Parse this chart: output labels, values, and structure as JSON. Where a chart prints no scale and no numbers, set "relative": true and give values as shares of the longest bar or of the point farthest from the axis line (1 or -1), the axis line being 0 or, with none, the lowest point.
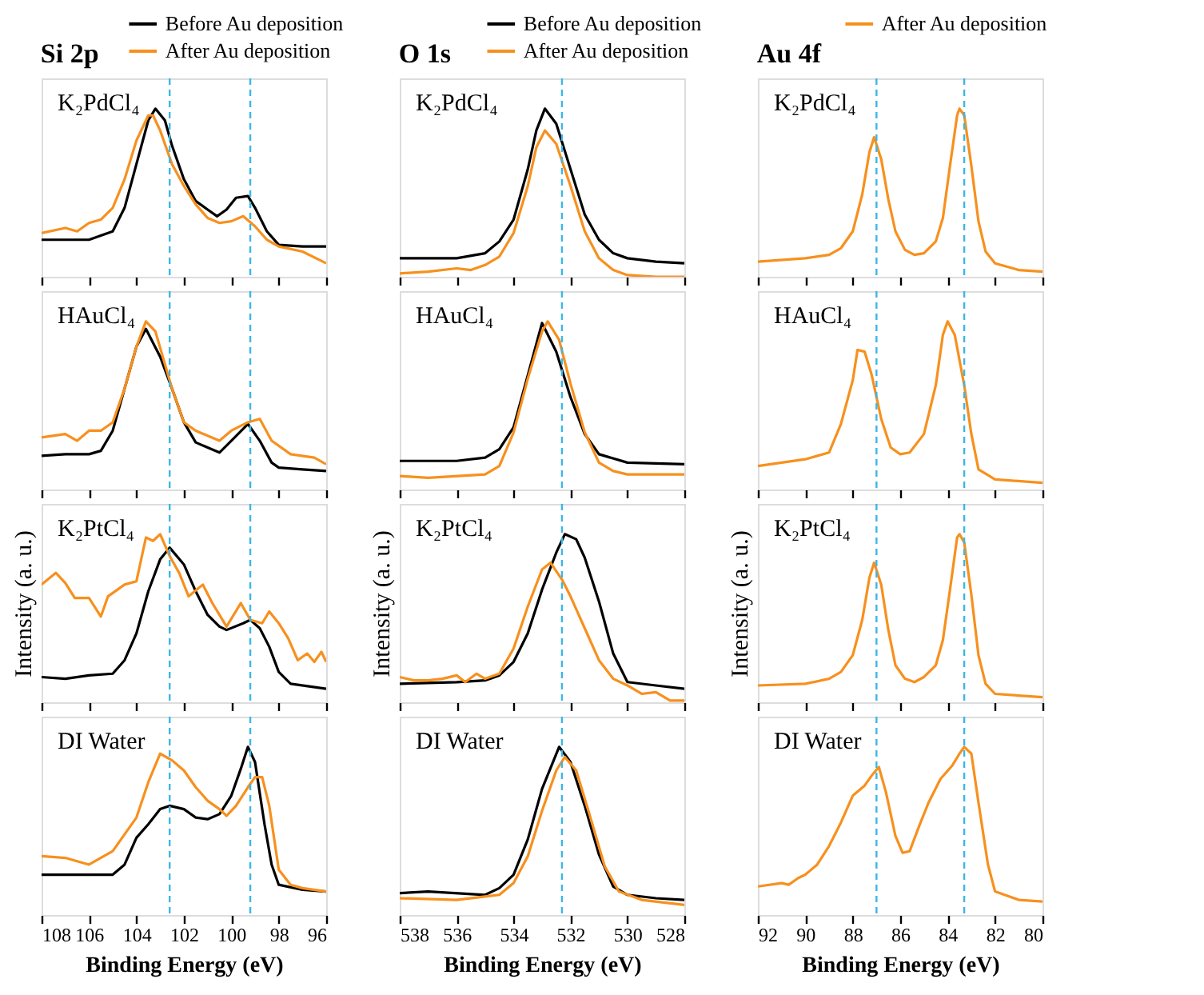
{
  "chart_data": [
    {
      "type": "line",
      "relative": true,
      "title": "Si 2p",
      "legend": "top",
      "xlim": [
        108,
        96
      ],
      "xticks": [
        108,
        106,
        104,
        102,
        100,
        98,
        96
      ],
      "tick_labels": false,
      "grid": false,
      "line_style": "solid",
      "annotations": [
        "K₂PdCl₄"
      ],
      "ref_lines": [
        {
          "axis": "x",
          "value": 102.6,
          "color": "#3ab7e8",
          "line_style": "dashed"
        },
        {
          "axis": "x",
          "value": 99.2,
          "color": "#3ab7e8",
          "line_style": "dashed"
        }
      ],
      "series": [
        {
          "name": "Before Au deposition",
          "color": "#000000",
          "x": [
            108,
            106,
            105,
            104.5,
            104,
            103.5,
            103.2,
            102.8,
            102.5,
            102,
            101.5,
            101,
            100.6,
            100.2,
            99.8,
            99.3,
            99,
            98.5,
            98,
            97,
            96
          ],
          "values": [
            0.22,
            0.22,
            0.27,
            0.41,
            0.67,
            0.93,
            1.0,
            0.93,
            0.78,
            0.58,
            0.45,
            0.4,
            0.36,
            0.4,
            0.47,
            0.48,
            0.41,
            0.27,
            0.19,
            0.18,
            0.18
          ]
        },
        {
          "name": "After Au deposition",
          "color": "#f7901e",
          "x": [
            108,
            107,
            106.5,
            106,
            105.5,
            105,
            104.5,
            104,
            103.5,
            103.3,
            103,
            102.5,
            102,
            101.5,
            101,
            100.5,
            100,
            99.5,
            99,
            98.5,
            98,
            97,
            96
          ],
          "values": [
            0.26,
            0.29,
            0.27,
            0.32,
            0.34,
            0.41,
            0.58,
            0.81,
            0.96,
            0.96,
            0.87,
            0.67,
            0.54,
            0.43,
            0.35,
            0.32,
            0.33,
            0.36,
            0.3,
            0.22,
            0.18,
            0.15,
            0.08
          ]
        }
      ]
    },
    {
      "type": "line",
      "relative": true,
      "title": "O 1s",
      "legend": "top",
      "xlim": [
        538,
        528
      ],
      "xticks": [
        538,
        536,
        534,
        532,
        530,
        528
      ],
      "tick_labels": false,
      "grid": false,
      "line_style": "solid",
      "annotations": [
        "K₂PdCl₄"
      ],
      "ref_lines": [
        {
          "axis": "x",
          "value": 532.3,
          "color": "#3ab7e8",
          "line_style": "dashed"
        }
      ],
      "series": [
        {
          "name": "Before Au deposition",
          "color": "#000000",
          "x": [
            538,
            537,
            536,
            535,
            534.5,
            534,
            533.5,
            533.2,
            532.9,
            532.5,
            532,
            531.5,
            531,
            530.5,
            530,
            529,
            528
          ],
          "values": [
            0.11,
            0.11,
            0.11,
            0.14,
            0.21,
            0.34,
            0.64,
            0.87,
            1.0,
            0.91,
            0.64,
            0.37,
            0.22,
            0.14,
            0.11,
            0.09,
            0.08
          ]
        },
        {
          "name": "After Au deposition",
          "color": "#f7901e",
          "x": [
            538,
            537,
            536,
            535.5,
            535,
            534.5,
            534,
            533.5,
            533.2,
            532.9,
            532.5,
            532,
            531.5,
            531,
            530.5,
            530,
            529,
            528
          ],
          "values": [
            0.02,
            0.03,
            0.05,
            0.04,
            0.07,
            0.12,
            0.26,
            0.54,
            0.77,
            0.87,
            0.79,
            0.54,
            0.27,
            0.11,
            0.04,
            0.01,
            0.0,
            0.0
          ]
        }
      ]
    },
    {
      "type": "line",
      "relative": true,
      "title": "Au 4f",
      "legend": "top",
      "xlim": [
        92,
        80
      ],
      "xticks": [
        92,
        90,
        88,
        86,
        84,
        82,
        80
      ],
      "tick_labels": false,
      "grid": false,
      "line_style": "solid",
      "annotations": [
        "K₂PdCl₄"
      ],
      "ref_lines": [
        {
          "axis": "x",
          "value": 87.0,
          "color": "#3ab7e8",
          "line_style": "dashed"
        },
        {
          "axis": "x",
          "value": 83.3,
          "color": "#3ab7e8",
          "line_style": "dashed"
        }
      ],
      "series": [
        {
          "name": "After Au deposition",
          "color": "#f7901e",
          "x": [
            92,
            90,
            89,
            88.5,
            88,
            87.6,
            87.3,
            87.1,
            86.8,
            86.5,
            86.2,
            85.8,
            85.4,
            85,
            84.5,
            84.2,
            83.9,
            83.6,
            83.5,
            83.3,
            83,
            82.7,
            82.4,
            82,
            81,
            80
          ],
          "values": [
            0.09,
            0.11,
            0.13,
            0.17,
            0.27,
            0.49,
            0.74,
            0.83,
            0.7,
            0.46,
            0.27,
            0.16,
            0.13,
            0.14,
            0.21,
            0.35,
            0.66,
            0.96,
            1.0,
            0.96,
            0.66,
            0.33,
            0.15,
            0.08,
            0.04,
            0.03
          ]
        }
      ]
    },
    {
      "type": "line",
      "relative": true,
      "xlim": [
        108,
        96
      ],
      "xticks": [
        108,
        106,
        104,
        102,
        100,
        98,
        96
      ],
      "tick_labels": false,
      "grid": false,
      "line_style": "solid",
      "annotations": [
        "HAuCl₄"
      ],
      "ref_lines": [
        {
          "axis": "x",
          "value": 102.6,
          "color": "#3ab7e8",
          "line_style": "dashed"
        },
        {
          "axis": "x",
          "value": 99.2,
          "color": "#3ab7e8",
          "line_style": "dashed"
        }
      ],
      "series": [
        {
          "color": "#000000",
          "x": [
            108,
            107,
            106,
            105.5,
            105,
            104.5,
            104,
            103.6,
            103,
            102.5,
            102,
            101.5,
            101,
            100.5,
            100,
            99.3,
            98.8,
            98.3,
            98,
            97,
            96
          ],
          "values": [
            0.2,
            0.21,
            0.21,
            0.23,
            0.35,
            0.6,
            0.85,
            0.955,
            0.79,
            0.6,
            0.4,
            0.28,
            0.25,
            0.22,
            0.29,
            0.39,
            0.29,
            0.16,
            0.13,
            0.12,
            0.11
          ]
        },
        {
          "color": "#f7901e",
          "x": [
            108,
            107,
            106.5,
            106,
            105.5,
            105,
            104.5,
            104,
            103.6,
            103.2,
            102.5,
            102,
            101.5,
            101,
            100.5,
            100,
            99.3,
            98.8,
            98.3,
            97.5,
            96.5,
            96
          ],
          "values": [
            0.31,
            0.33,
            0.29,
            0.35,
            0.35,
            0.4,
            0.6,
            0.85,
            1.0,
            0.94,
            0.6,
            0.4,
            0.35,
            0.32,
            0.29,
            0.35,
            0.4,
            0.42,
            0.29,
            0.21,
            0.19,
            0.15
          ]
        }
      ]
    },
    {
      "type": "line",
      "relative": true,
      "xlim": [
        538,
        528
      ],
      "xticks": [
        538,
        536,
        534,
        532,
        530,
        528
      ],
      "tick_labels": false,
      "grid": false,
      "line_style": "solid",
      "annotations": [
        "HAuCl₄"
      ],
      "ref_lines": [
        {
          "axis": "x",
          "value": 532.3,
          "color": "#3ab7e8",
          "line_style": "dashed"
        }
      ],
      "series": [
        {
          "color": "#000000",
          "x": [
            538,
            536,
            535,
            534.5,
            534,
            533.5,
            533,
            532.5,
            532,
            531.5,
            531,
            530,
            528
          ],
          "values": [
            0.17,
            0.17,
            0.19,
            0.24,
            0.37,
            0.68,
            0.99,
            0.82,
            0.55,
            0.33,
            0.21,
            0.16,
            0.15
          ]
        },
        {
          "color": "#f7901e",
          "x": [
            538,
            537,
            535,
            534.5,
            534,
            533.5,
            533,
            532.8,
            532.4,
            532,
            531.5,
            531,
            530.5,
            530,
            528
          ],
          "values": [
            0.08,
            0.07,
            0.09,
            0.14,
            0.34,
            0.66,
            0.94,
            1.0,
            0.89,
            0.63,
            0.34,
            0.16,
            0.11,
            0.09,
            0.09
          ]
        }
      ]
    },
    {
      "type": "line",
      "relative": true,
      "xlim": [
        92,
        80
      ],
      "xticks": [
        92,
        90,
        88,
        86,
        84,
        82,
        80
      ],
      "tick_labels": false,
      "grid": false,
      "line_style": "solid",
      "annotations": [
        "HAuCl₄"
      ],
      "ref_lines": [
        {
          "axis": "x",
          "value": 87.0,
          "color": "#3ab7e8",
          "line_style": "dashed"
        },
        {
          "axis": "x",
          "value": 83.3,
          "color": "#3ab7e8",
          "line_style": "dashed"
        }
      ],
      "series": [
        {
          "color": "#f7901e",
          "x": [
            92,
            90,
            89,
            88.5,
            88,
            87.8,
            87.5,
            87.2,
            86.8,
            86.4,
            86,
            85.6,
            85,
            84.5,
            84.2,
            84,
            83.7,
            83.3,
            83,
            82.7,
            82,
            80
          ],
          "values": [
            0.14,
            0.18,
            0.22,
            0.39,
            0.65,
            0.83,
            0.82,
            0.68,
            0.42,
            0.25,
            0.21,
            0.22,
            0.33,
            0.62,
            0.92,
            1.0,
            0.92,
            0.62,
            0.33,
            0.12,
            0.06,
            0.04
          ]
        }
      ]
    },
    {
      "type": "line",
      "relative": true,
      "ylabel": "Intensity (a. u.)",
      "xlim": [
        108,
        96
      ],
      "xticks": [
        108,
        106,
        104,
        102,
        100,
        98,
        96
      ],
      "tick_labels": false,
      "grid": false,
      "line_style": "solid",
      "annotations": [
        "K₂PtCl₄"
      ],
      "ref_lines": [
        {
          "axis": "x",
          "value": 102.6,
          "color": "#3ab7e8",
          "line_style": "dashed"
        },
        {
          "axis": "x",
          "value": 99.2,
          "color": "#3ab7e8",
          "line_style": "dashed"
        }
      ],
      "series": [
        {
          "color": "#000000",
          "x": [
            108,
            107,
            106,
            105,
            104.5,
            104,
            103.5,
            103,
            102.6,
            102,
            101.5,
            101,
            100.5,
            100.2,
            99.5,
            99.2,
            98.8,
            98.4,
            98,
            97.5,
            96
          ],
          "values": [
            0.15,
            0.14,
            0.16,
            0.17,
            0.25,
            0.41,
            0.66,
            0.85,
            0.92,
            0.82,
            0.66,
            0.52,
            0.45,
            0.43,
            0.47,
            0.49,
            0.44,
            0.33,
            0.18,
            0.11,
            0.08
          ]
        },
        {
          "color": "#f7901e",
          "x": [
            108,
            107.4,
            107,
            106.6,
            106,
            105.5,
            105.2,
            104.5,
            104,
            103.6,
            103.3,
            103,
            102.6,
            102.2,
            101.8,
            101.2,
            100.8,
            100.2,
            99.6,
            99.2,
            98.7,
            98.4,
            98,
            97.6,
            97.2,
            96.8,
            96.5,
            96.2,
            96
          ],
          "values": [
            0.7,
            0.77,
            0.71,
            0.62,
            0.62,
            0.51,
            0.63,
            0.7,
            0.72,
            0.98,
            0.96,
            1.0,
            0.87,
            0.77,
            0.63,
            0.7,
            0.59,
            0.45,
            0.59,
            0.49,
            0.47,
            0.54,
            0.47,
            0.38,
            0.25,
            0.29,
            0.24,
            0.3,
            0.24
          ]
        }
      ]
    },
    {
      "type": "line",
      "relative": true,
      "ylabel": "Intensity (a. u.)",
      "xlim": [
        538,
        528
      ],
      "xticks": [
        538,
        536,
        534,
        532,
        530,
        528
      ],
      "tick_labels": false,
      "grid": false,
      "line_style": "solid",
      "annotations": [
        "K₂PtCl₄"
      ],
      "ref_lines": [
        {
          "axis": "x",
          "value": 532.3,
          "color": "#3ab7e8",
          "line_style": "dashed"
        }
      ],
      "series": [
        {
          "color": "#000000",
          "x": [
            538,
            536,
            535,
            534.5,
            534,
            533.5,
            533,
            532.5,
            532.2,
            531.8,
            531.5,
            531,
            530.5,
            530,
            529,
            528
          ],
          "values": [
            0.11,
            0.12,
            0.13,
            0.16,
            0.24,
            0.41,
            0.67,
            0.89,
            1.0,
            0.97,
            0.86,
            0.6,
            0.29,
            0.12,
            0.1,
            0.08
          ]
        },
        {
          "color": "#f7901e",
          "x": [
            538,
            537.5,
            537,
            536.5,
            536,
            535.7,
            535.3,
            535,
            534.5,
            534,
            533.5,
            533,
            532.7,
            532.3,
            532,
            531.5,
            531,
            530.5,
            530,
            529.5,
            529,
            528.5,
            528
          ],
          "values": [
            0.15,
            0.13,
            0.13,
            0.14,
            0.16,
            0.12,
            0.17,
            0.14,
            0.17,
            0.32,
            0.57,
            0.79,
            0.83,
            0.73,
            0.63,
            0.44,
            0.25,
            0.14,
            0.1,
            0.05,
            0.06,
            0.01,
            0.01
          ]
        }
      ]
    },
    {
      "type": "line",
      "relative": true,
      "ylabel": "Intensity (a. u.)",
      "xlim": [
        92,
        80
      ],
      "xticks": [
        92,
        90,
        88,
        86,
        84,
        82,
        80
      ],
      "tick_labels": false,
      "grid": false,
      "line_style": "solid",
      "annotations": [
        "K₂PtCl₄"
      ],
      "ref_lines": [
        {
          "axis": "x",
          "value": 87.0,
          "color": "#3ab7e8",
          "line_style": "dashed"
        },
        {
          "axis": "x",
          "value": 83.3,
          "color": "#3ab7e8",
          "line_style": "dashed"
        }
      ],
      "series": [
        {
          "color": "#f7901e",
          "x": [
            92,
            90,
            89,
            88.5,
            88,
            87.6,
            87.3,
            87.1,
            86.8,
            86.5,
            86.2,
            85.8,
            85.4,
            85,
            84.5,
            84.2,
            83.9,
            83.6,
            83.5,
            83.3,
            83,
            82.7,
            82.4,
            82,
            80
          ],
          "values": [
            0.1,
            0.11,
            0.14,
            0.18,
            0.28,
            0.49,
            0.74,
            0.83,
            0.7,
            0.43,
            0.22,
            0.14,
            0.12,
            0.15,
            0.22,
            0.37,
            0.67,
            0.98,
            1.0,
            0.95,
            0.64,
            0.28,
            0.11,
            0.05,
            0.03
          ]
        }
      ]
    },
    {
      "type": "line",
      "relative": true,
      "xlabel": "Binding Energy (eV)",
      "xlim": [
        108,
        96
      ],
      "xticks": [
        108,
        106,
        104,
        102,
        100,
        98,
        96
      ],
      "tick_labels": "x",
      "grid": false,
      "line_style": "solid",
      "annotations": [
        "DI Water"
      ],
      "ref_lines": [
        {
          "axis": "x",
          "value": 102.6,
          "color": "#3ab7e8",
          "line_style": "dashed"
        },
        {
          "axis": "x",
          "value": 99.2,
          "color": "#3ab7e8",
          "line_style": "dashed"
        }
      ],
      "series": [
        {
          "color": "#000000",
          "x": [
            108,
            106,
            105,
            104.5,
            104,
            103.5,
            103,
            102.6,
            102,
            101.5,
            101,
            100.5,
            100,
            99.6,
            99.3,
            99,
            98.6,
            98.3,
            98,
            97,
            96
          ],
          "values": [
            0.24,
            0.24,
            0.24,
            0.3,
            0.46,
            0.54,
            0.63,
            0.65,
            0.63,
            0.58,
            0.57,
            0.6,
            0.71,
            0.87,
            1.0,
            0.91,
            0.54,
            0.3,
            0.18,
            0.15,
            0.14
          ]
        },
        {
          "color": "#f7901e",
          "x": [
            108,
            107,
            106,
            105,
            104,
            103.5,
            103,
            102.5,
            102,
            101.5,
            101,
            100.5,
            100.2,
            99.8,
            99.3,
            99,
            98.7,
            98.4,
            98,
            97.5,
            97,
            96
          ],
          "values": [
            0.35,
            0.34,
            0.3,
            0.38,
            0.58,
            0.79,
            0.96,
            0.92,
            0.86,
            0.76,
            0.68,
            0.63,
            0.59,
            0.65,
            0.76,
            0.82,
            0.82,
            0.65,
            0.27,
            0.18,
            0.16,
            0.14
          ]
        }
      ]
    },
    {
      "type": "line",
      "relative": true,
      "xlabel": "Binding Energy (eV)",
      "xlim": [
        538,
        528
      ],
      "xticks": [
        538,
        536,
        534,
        532,
        530,
        528
      ],
      "tick_labels": "x",
      "grid": false,
      "line_style": "solid",
      "annotations": [
        "DI Water"
      ],
      "ref_lines": [
        {
          "axis": "x",
          "value": 532.3,
          "color": "#3ab7e8",
          "line_style": "dashed"
        }
      ],
      "series": [
        {
          "color": "#000000",
          "x": [
            538,
            537,
            535,
            534.5,
            534,
            533.5,
            533,
            532.4,
            532,
            531.5,
            531,
            530.5,
            530,
            529,
            528
          ],
          "values": [
            0.13,
            0.14,
            0.12,
            0.16,
            0.24,
            0.45,
            0.75,
            1.0,
            0.91,
            0.65,
            0.36,
            0.17,
            0.12,
            0.1,
            0.09
          ]
        },
        {
          "color": "#f7901e",
          "x": [
            538,
            536,
            535,
            534.5,
            534,
            533.5,
            533,
            532.5,
            532.2,
            531.8,
            531.3,
            530.8,
            530.3,
            529.5,
            528
          ],
          "values": [
            0.1,
            0.09,
            0.11,
            0.12,
            0.19,
            0.35,
            0.62,
            0.86,
            0.94,
            0.86,
            0.58,
            0.29,
            0.14,
            0.09,
            0.06
          ]
        }
      ]
    },
    {
      "type": "line",
      "relative": true,
      "xlabel": "Binding Energy (eV)",
      "xlim": [
        92,
        80
      ],
      "xticks": [
        92,
        90,
        88,
        86,
        84,
        82,
        80
      ],
      "tick_labels": "x",
      "grid": false,
      "line_style": "solid",
      "annotations": [
        "DI Water"
      ],
      "ref_lines": [
        {
          "axis": "x",
          "value": 87.0,
          "color": "#3ab7e8",
          "line_style": "dashed"
        },
        {
          "axis": "x",
          "value": 83.3,
          "color": "#3ab7e8",
          "line_style": "dashed"
        }
      ],
      "series": [
        {
          "color": "#f7901e",
          "x": [
            92,
            91,
            90.7,
            90.3,
            90,
            89.5,
            89,
            88.5,
            88,
            87.5,
            87.2,
            86.9,
            86.6,
            86.2,
            85.9,
            85.6,
            85.2,
            84.8,
            84.3,
            83.8,
            83.5,
            83.3,
            83,
            82.7,
            82.3,
            82,
            81,
            80
          ],
          "values": [
            0.17,
            0.19,
            0.18,
            0.22,
            0.24,
            0.3,
            0.41,
            0.55,
            0.71,
            0.77,
            0.83,
            0.88,
            0.73,
            0.47,
            0.37,
            0.38,
            0.53,
            0.67,
            0.81,
            0.89,
            0.96,
            1.0,
            0.96,
            0.67,
            0.3,
            0.14,
            0.09,
            0.08
          ]
        }
      ]
    }
  ]
}
